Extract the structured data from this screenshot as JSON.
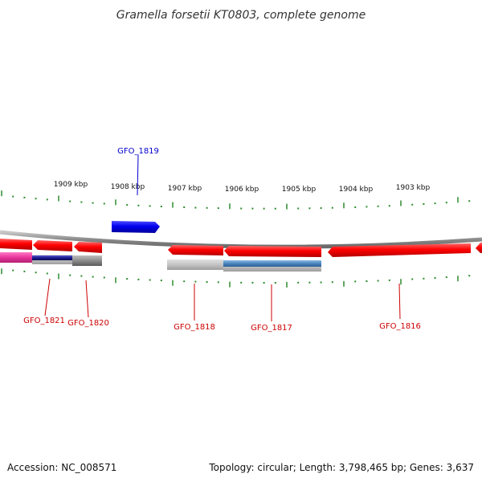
{
  "title": "Gramella forsetii KT0803, complete genome",
  "accession": "Accession: NC_008571",
  "summary": "Topology: circular; Length: 3,798,465 bp; Genes: 3,637",
  "ruler": {
    "labels": [
      "1909 kbp",
      "1908 kbp",
      "1907 kbp",
      "1906 kbp",
      "1905 kbp",
      "1904 kbp",
      "1903 kbp"
    ]
  },
  "genes": [
    {
      "id": "GFO_1819",
      "strand": "+",
      "color": "#0000cc"
    },
    {
      "id": "GFO_1821",
      "strand": "-",
      "color": "#cc0000"
    },
    {
      "id": "GFO_1820",
      "strand": "-",
      "color": "#cc0000"
    },
    {
      "id": "GFO_1818",
      "strand": "-",
      "color": "#cc0000"
    },
    {
      "id": "GFO_1817",
      "strand": "-",
      "color": "#cc0000"
    },
    {
      "id": "GFO_1816",
      "strand": "-",
      "color": "#cc0000"
    }
  ],
  "colors": {
    "backbone": "#8a8a8a",
    "tick": "#2e8b2e",
    "forward_gene": "#0000dd",
    "reverse_gene": "#ee0000",
    "feature_magenta": "#e8359b",
    "feature_navy": "#1a1a8c",
    "feature_gray": "#808080",
    "feature_lightgray": "#bfbfbf",
    "feature_steelblue": "#4a86c0"
  }
}
